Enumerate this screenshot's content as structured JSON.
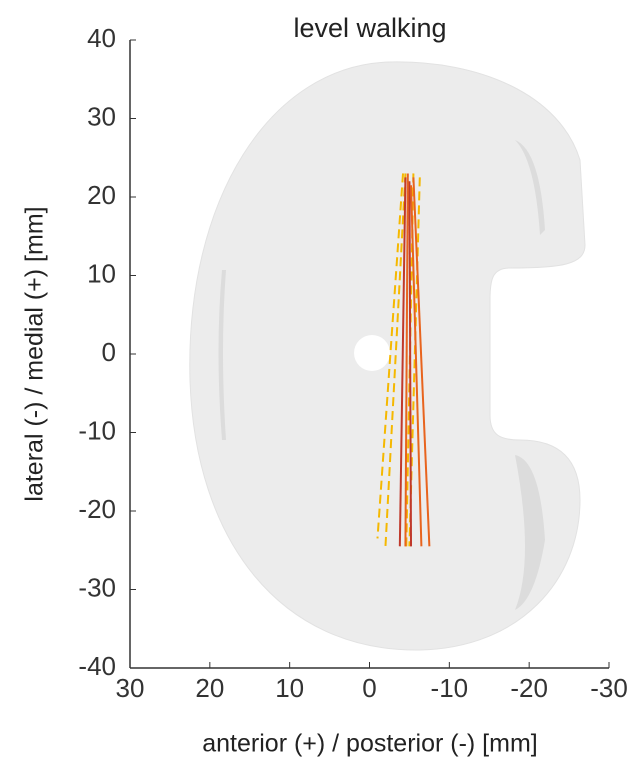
{
  "chart_data": {
    "type": "line",
    "title": "level walking",
    "xlabel": "anterior (+) / posterior (-) [mm]",
    "ylabel": "lateral (-) / medial (+) [mm]",
    "xlim": [
      30,
      -30
    ],
    "xticks": [
      30,
      20,
      10,
      0,
      -10,
      -20,
      -30
    ],
    "ylim": [
      -40,
      40
    ],
    "yticks": [
      -40,
      -30,
      -20,
      -10,
      0,
      10,
      20,
      30,
      40
    ],
    "series": [
      {
        "color": "#f5b800",
        "dashed": true,
        "x": [
          -4.2,
          -1
        ],
        "y": [
          23,
          -23.5
        ]
      },
      {
        "color": "#f5b800",
        "dashed": true,
        "x": [
          -4.5,
          -2
        ],
        "y": [
          23,
          -24.5
        ]
      },
      {
        "color": "#f5b800",
        "dashed": true,
        "x": [
          -6.3,
          -5
        ],
        "y": [
          22.5,
          -24.5
        ]
      },
      {
        "color": "#f5b800",
        "dashed": true,
        "x": [
          -5.5,
          -4.6
        ],
        "y": [
          23,
          -25
        ]
      },
      {
        "color": "#c0392b",
        "dashed": false,
        "x": [
          -4.5,
          -3.8
        ],
        "y": [
          22.5,
          -24.5
        ]
      },
      {
        "color": "#c0392b",
        "dashed": false,
        "x": [
          -5,
          -5.2
        ],
        "y": [
          22,
          -24.5
        ]
      },
      {
        "color": "#e8641e",
        "dashed": false,
        "x": [
          -5.2,
          -6.5
        ],
        "y": [
          21.5,
          -24.5
        ]
      },
      {
        "color": "#e8641e",
        "dashed": false,
        "x": [
          -5.5,
          -7.5
        ],
        "y": [
          22.5,
          -24.5
        ]
      },
      {
        "color": "#e8641e",
        "dashed": false,
        "x": [
          -4.8,
          -4.5
        ],
        "y": [
          23,
          -24.5
        ]
      }
    ]
  }
}
